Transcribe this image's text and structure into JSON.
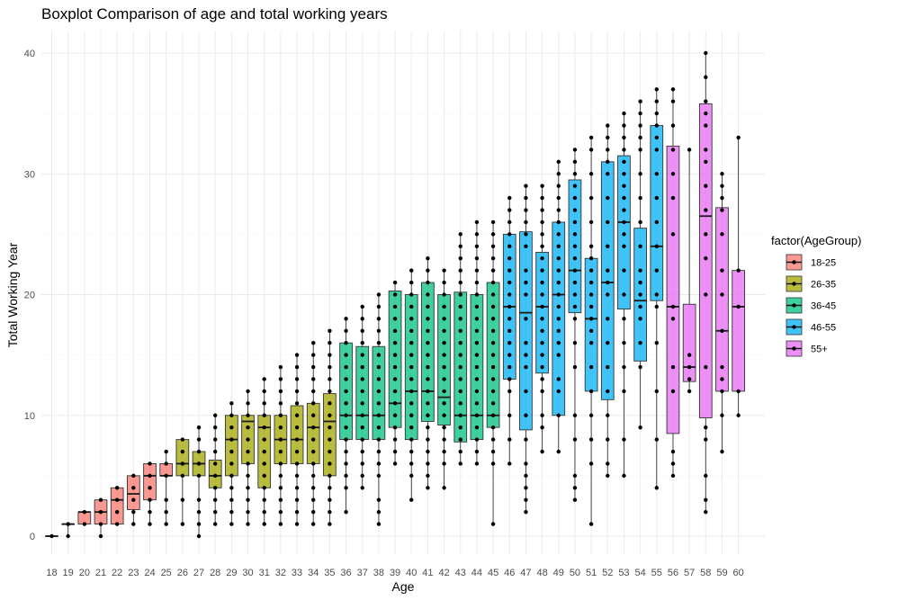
{
  "chart_data": {
    "type": "boxplot",
    "title": "Boxplot Comparison of age and total working years",
    "xlabel": "Age",
    "ylabel": "Total Working Year",
    "ylim": [
      0,
      40
    ],
    "yticks": [
      0,
      10,
      20,
      30,
      40
    ],
    "grid": true,
    "legend": {
      "title": "factor(AgeGroup)",
      "placement": "right",
      "items": [
        {
          "label": "18-25",
          "color": "#F8766D"
        },
        {
          "label": "26-35",
          "color": "#A3A500"
        },
        {
          "label": "36-45",
          "color": "#00BF7D"
        },
        {
          "label": "46-55",
          "color": "#00B0F6"
        },
        {
          "label": "55+",
          "color": "#E76BF3"
        }
      ]
    },
    "boxes": [
      {
        "age": "18",
        "group": "18-25",
        "min": 0,
        "q1": 0,
        "median": 0,
        "q3": 0,
        "max": 0,
        "points": [
          0
        ]
      },
      {
        "age": "19",
        "group": "18-25",
        "min": 0,
        "q1": 1,
        "median": 1,
        "q3": 1,
        "max": 1,
        "points": [
          0,
          1
        ]
      },
      {
        "age": "20",
        "group": "18-25",
        "min": 1,
        "q1": 1,
        "median": 2,
        "q3": 2,
        "max": 2,
        "points": [
          1,
          2
        ]
      },
      {
        "age": "21",
        "group": "18-25",
        "min": 0,
        "q1": 1,
        "median": 2,
        "q3": 3,
        "max": 3,
        "points": [
          0,
          1,
          2,
          3
        ]
      },
      {
        "age": "22",
        "group": "18-25",
        "min": 1,
        "q1": 1,
        "median": 3,
        "q3": 4,
        "max": 4,
        "points": [
          1,
          2,
          3,
          4
        ]
      },
      {
        "age": "23",
        "group": "18-25",
        "min": 1,
        "q1": 2.2,
        "median": 3.5,
        "q3": 5,
        "max": 5,
        "points": [
          1,
          2,
          3,
          4,
          5
        ]
      },
      {
        "age": "24",
        "group": "18-25",
        "min": 1,
        "q1": 3,
        "median": 5,
        "q3": 6,
        "max": 6,
        "points": [
          1,
          2,
          3,
          4,
          5,
          6
        ]
      },
      {
        "age": "25",
        "group": "18-25",
        "min": 1,
        "q1": 5,
        "median": 5,
        "q3": 6,
        "max": 7,
        "points": [
          1,
          2,
          3,
          5,
          6,
          7
        ]
      },
      {
        "age": "26",
        "group": "26-35",
        "min": 1,
        "q1": 5,
        "median": 6,
        "q3": 8,
        "max": 8,
        "points": [
          1,
          3,
          5,
          6,
          7,
          8
        ]
      },
      {
        "age": "27",
        "group": "26-35",
        "min": 0,
        "q1": 5,
        "median": 6,
        "q3": 7,
        "max": 9,
        "points": [
          0,
          1,
          2,
          3,
          5,
          6,
          7,
          8,
          9
        ]
      },
      {
        "age": "28",
        "group": "26-35",
        "min": 1,
        "q1": 4,
        "median": 5,
        "q3": 6.3,
        "max": 10,
        "points": [
          1,
          2,
          3,
          4,
          5,
          6,
          7,
          8,
          9,
          10
        ]
      },
      {
        "age": "29",
        "group": "26-35",
        "min": 1,
        "q1": 5,
        "median": 8,
        "q3": 10,
        "max": 11,
        "points": [
          1,
          2,
          3,
          4,
          5,
          6,
          7,
          8,
          9,
          10,
          11
        ]
      },
      {
        "age": "30",
        "group": "26-35",
        "min": 1,
        "q1": 6,
        "median": 9.5,
        "q3": 10,
        "max": 12,
        "points": [
          1,
          2,
          3,
          4,
          5,
          6,
          7,
          8,
          9,
          10,
          11,
          12
        ]
      },
      {
        "age": "31",
        "group": "26-35",
        "min": 1,
        "q1": 4,
        "median": 9,
        "q3": 10,
        "max": 13,
        "points": [
          1,
          2,
          3,
          4,
          5,
          6,
          7,
          8,
          9,
          10,
          11,
          12,
          13
        ]
      },
      {
        "age": "32",
        "group": "26-35",
        "min": 1,
        "q1": 6,
        "median": 8,
        "q3": 10,
        "max": 14,
        "points": [
          1,
          2,
          3,
          4,
          5,
          6,
          7,
          8,
          9,
          10,
          11,
          12,
          13,
          14
        ]
      },
      {
        "age": "33",
        "group": "26-35",
        "min": 1,
        "q1": 6,
        "median": 8,
        "q3": 10.8,
        "max": 15,
        "points": [
          1,
          2,
          3,
          4,
          5,
          6,
          7,
          8,
          9,
          10,
          11,
          12,
          13,
          14,
          15
        ]
      },
      {
        "age": "34",
        "group": "26-35",
        "min": 1,
        "q1": 6,
        "median": 9,
        "q3": 11,
        "max": 16,
        "points": [
          1,
          2,
          3,
          4,
          5,
          6,
          7,
          8,
          9,
          10,
          11,
          12,
          13,
          14,
          15,
          16
        ]
      },
      {
        "age": "35",
        "group": "26-35",
        "min": 1,
        "q1": 5,
        "median": 9.5,
        "q3": 11.8,
        "max": 17,
        "points": [
          1,
          2,
          3,
          4,
          5,
          6,
          7,
          8,
          9,
          10,
          11,
          12,
          13,
          14,
          15,
          16,
          17
        ]
      },
      {
        "age": "36",
        "group": "36-45",
        "min": 2,
        "q1": 8,
        "median": 10,
        "q3": 16,
        "max": 18,
        "points": [
          2,
          4,
          5,
          6,
          7,
          8,
          9,
          10,
          11,
          12,
          13,
          14,
          15,
          16,
          17,
          18
        ]
      },
      {
        "age": "37",
        "group": "36-45",
        "min": 4,
        "q1": 8,
        "median": 10,
        "q3": 15.7,
        "max": 19,
        "points": [
          4,
          5,
          6,
          7,
          8,
          9,
          10,
          11,
          12,
          13,
          14,
          15,
          16,
          17,
          18,
          19
        ]
      },
      {
        "age": "38",
        "group": "36-45",
        "min": 1,
        "q1": 8,
        "median": 10,
        "q3": 15.7,
        "max": 20,
        "points": [
          1,
          2,
          3,
          5,
          6,
          7,
          8,
          9,
          10,
          11,
          12,
          13,
          14,
          15,
          16,
          17,
          18,
          19,
          20
        ]
      },
      {
        "age": "39",
        "group": "36-45",
        "min": 6,
        "q1": 9,
        "median": 11,
        "q3": 20.3,
        "max": 21,
        "points": [
          6,
          7,
          8,
          9,
          10,
          11,
          12,
          13,
          14,
          15,
          16,
          17,
          18,
          19,
          20,
          21
        ]
      },
      {
        "age": "40",
        "group": "36-45",
        "min": 3,
        "q1": 8,
        "median": 12,
        "q3": 20,
        "max": 22,
        "points": [
          3,
          5,
          6,
          7,
          8,
          9,
          10,
          11,
          12,
          13,
          14,
          15,
          16,
          17,
          18,
          19,
          20,
          21,
          22
        ]
      },
      {
        "age": "41",
        "group": "36-45",
        "min": 4,
        "q1": 9.5,
        "median": 12,
        "q3": 21,
        "max": 23,
        "points": [
          4,
          5,
          6,
          7,
          8,
          9,
          10,
          11,
          12,
          13,
          14,
          15,
          16,
          17,
          18,
          19,
          20,
          21,
          22,
          23
        ]
      },
      {
        "age": "42",
        "group": "36-45",
        "min": 4,
        "q1": 9.2,
        "median": 11.5,
        "q3": 20,
        "max": 22,
        "points": [
          4,
          6,
          7,
          8,
          9,
          10,
          11,
          12,
          13,
          14,
          15,
          16,
          17,
          18,
          19,
          20,
          21,
          22
        ]
      },
      {
        "age": "43",
        "group": "36-45",
        "min": 6,
        "q1": 7.8,
        "median": 10,
        "q3": 20.2,
        "max": 25,
        "points": [
          6,
          7,
          8,
          9,
          10,
          11,
          12,
          13,
          14,
          15,
          16,
          17,
          18,
          19,
          20,
          21,
          22,
          23,
          24,
          25
        ]
      },
      {
        "age": "44",
        "group": "36-45",
        "min": 6,
        "q1": 8,
        "median": 10,
        "q3": 20,
        "max": 26,
        "points": [
          6,
          7,
          8,
          9,
          10,
          11,
          12,
          13,
          14,
          15,
          16,
          17,
          18,
          19,
          20,
          21,
          22,
          23,
          24,
          25,
          26
        ]
      },
      {
        "age": "45",
        "group": "36-45",
        "min": 1,
        "q1": 9,
        "median": 10,
        "q3": 21,
        "max": 26,
        "points": [
          1,
          6,
          7,
          8,
          9,
          10,
          11,
          12,
          13,
          14,
          15,
          16,
          17,
          18,
          19,
          20,
          21,
          22,
          23,
          24,
          25,
          26
        ]
      },
      {
        "age": "46",
        "group": "46-55",
        "min": 6,
        "q1": 13,
        "median": 19,
        "q3": 25,
        "max": 28,
        "points": [
          6,
          8,
          10,
          12,
          13,
          14,
          15,
          16,
          17,
          18,
          19,
          20,
          21,
          22,
          23,
          24,
          25,
          26,
          27,
          28
        ]
      },
      {
        "age": "47",
        "group": "46-55",
        "min": 2,
        "q1": 8.8,
        "median": 18.5,
        "q3": 25.2,
        "max": 29,
        "points": [
          2,
          3,
          4,
          5,
          6,
          8,
          10,
          12,
          14,
          15,
          16,
          18,
          20,
          21,
          22,
          24,
          25,
          26,
          27,
          28,
          29
        ]
      },
      {
        "age": "48",
        "group": "46-55",
        "min": 7,
        "q1": 13.5,
        "median": 19,
        "q3": 23.5,
        "max": 29,
        "points": [
          7,
          9,
          10,
          12,
          13,
          14,
          15,
          16,
          17,
          18,
          19,
          20,
          21,
          22,
          23,
          24,
          25,
          26,
          27,
          28,
          29
        ]
      },
      {
        "age": "49",
        "group": "46-55",
        "min": 7,
        "q1": 10,
        "median": 20,
        "q3": 26,
        "max": 31,
        "points": [
          7,
          10,
          12,
          13,
          15,
          16,
          17,
          18,
          19,
          20,
          21,
          22,
          23,
          24,
          25,
          26,
          27,
          28,
          29,
          30,
          31
        ]
      },
      {
        "age": "50",
        "group": "46-55",
        "min": 3,
        "q1": 18.5,
        "median": 22,
        "q3": 29.5,
        "max": 32,
        "points": [
          3,
          4,
          5,
          8,
          10,
          14,
          16,
          18,
          19,
          20,
          21,
          22,
          23,
          24,
          25,
          26,
          27,
          28,
          29,
          30,
          31,
          32
        ]
      },
      {
        "age": "51",
        "group": "46-55",
        "min": 1,
        "q1": 12,
        "median": 18,
        "q3": 23,
        "max": 33,
        "points": [
          1,
          6,
          8,
          10,
          12,
          14,
          16,
          17,
          18,
          19,
          20,
          21,
          22,
          23,
          24,
          26,
          28,
          30,
          32,
          33
        ]
      },
      {
        "age": "52",
        "group": "46-55",
        "min": 5,
        "q1": 11.3,
        "median": 21,
        "q3": 31,
        "max": 34,
        "points": [
          5,
          6,
          8,
          10,
          12,
          14,
          16,
          18,
          20,
          21,
          22,
          24,
          26,
          28,
          30,
          31,
          32,
          33,
          34
        ]
      },
      {
        "age": "53",
        "group": "46-55",
        "min": 5,
        "q1": 18.8,
        "median": 26,
        "q3": 31.5,
        "max": 35,
        "points": [
          5,
          8,
          12,
          14,
          16,
          18,
          20,
          22,
          24,
          25,
          26,
          27,
          28,
          29,
          30,
          31,
          32,
          33,
          34,
          35
        ]
      },
      {
        "age": "54",
        "group": "46-55",
        "min": 9,
        "q1": 14.5,
        "median": 19.5,
        "q3": 25.5,
        "max": 36,
        "points": [
          9,
          14,
          16,
          18,
          19,
          20,
          21,
          22,
          24,
          26,
          28,
          30,
          32,
          33,
          34,
          35,
          36
        ]
      },
      {
        "age": "55",
        "group": "46-55",
        "min": 4,
        "q1": 19.5,
        "median": 24,
        "q3": 34,
        "max": 37,
        "points": [
          4,
          8,
          12,
          16,
          19,
          20,
          22,
          24,
          26,
          28,
          30,
          32,
          33,
          34,
          35,
          36,
          37
        ]
      },
      {
        "age": "56",
        "group": "55+",
        "min": 5,
        "q1": 8.5,
        "median": 19,
        "q3": 32.3,
        "max": 37,
        "points": [
          5,
          6,
          7,
          12,
          14,
          18,
          19,
          25,
          28,
          30,
          32,
          34,
          36,
          37
        ]
      },
      {
        "age": "57",
        "group": "55+",
        "min": 12,
        "q1": 12.8,
        "median": 14,
        "q3": 19.2,
        "max": 32,
        "points": [
          12,
          13,
          14,
          15,
          32
        ]
      },
      {
        "age": "58",
        "group": "55+",
        "min": 2,
        "q1": 9.8,
        "median": 26.5,
        "q3": 35.8,
        "max": 40,
        "points": [
          2,
          3,
          5,
          8,
          9,
          14,
          20,
          23,
          25,
          27,
          29,
          31,
          32,
          34,
          35,
          36,
          38,
          40
        ]
      },
      {
        "age": "59",
        "group": "55+",
        "min": 7,
        "q1": 12,
        "median": 17,
        "q3": 27.2,
        "max": 30,
        "points": [
          7,
          10,
          12,
          13,
          14,
          17,
          20,
          22,
          25,
          27,
          28,
          29,
          30
        ]
      },
      {
        "age": "60",
        "group": "55+",
        "min": 10,
        "q1": 12,
        "median": 19,
        "q3": 22,
        "max": 33,
        "points": [
          10,
          12,
          19,
          22,
          33
        ]
      }
    ]
  }
}
